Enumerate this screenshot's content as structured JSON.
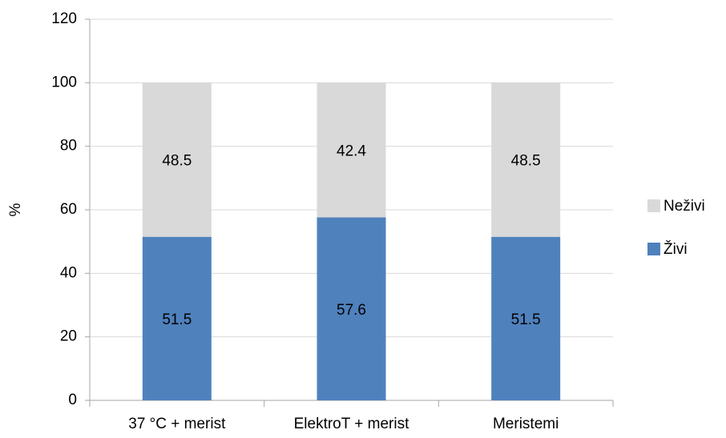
{
  "chart_data": {
    "type": "stacked_bar",
    "y_label": "%",
    "categories": [
      "37 °C + merist",
      "ElektroT + merist",
      "Meristemi"
    ],
    "series": [
      {
        "name": "Živi",
        "color": "#4f81bd",
        "values": [
          51.5,
          57.6,
          51.5
        ]
      },
      {
        "name": "Neživi",
        "color": "#d9d9d9",
        "values": [
          48.5,
          42.4,
          48.5
        ]
      }
    ],
    "ylim": [
      0,
      120
    ],
    "yticks": [
      0,
      20,
      40,
      60,
      80,
      100,
      120
    ],
    "grid": true,
    "legend": "right"
  }
}
